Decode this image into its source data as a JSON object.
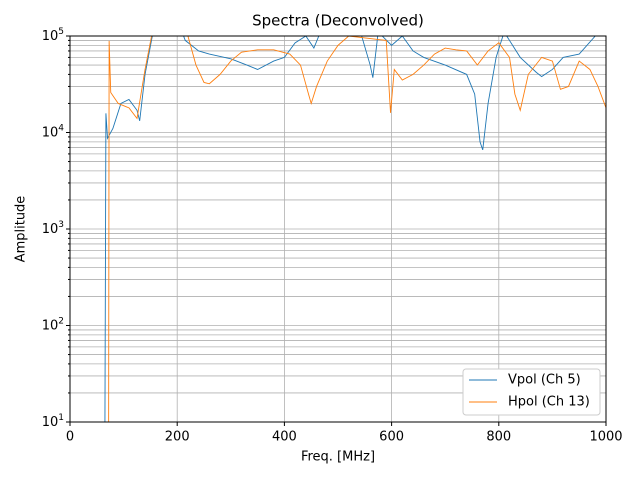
{
  "chart_data": {
    "type": "line",
    "title": "Spectra (Deconvolved)",
    "xlabel": "Freq. [MHz]",
    "ylabel": "Amplitude",
    "yscale": "log",
    "grid": true,
    "minor_grid": true,
    "legend": "lower right",
    "xlim": [
      0,
      1000
    ],
    "xticks": [
      0,
      200,
      400,
      600,
      800,
      1000
    ],
    "ylim": [
      10,
      100000
    ],
    "yticks": [
      {
        "value": 10,
        "label": "10^1"
      },
      {
        "value": 100,
        "label": "10^2"
      },
      {
        "value": 1000,
        "label": "10^3"
      },
      {
        "value": 10000,
        "label": "10^4"
      },
      {
        "value": 100000,
        "label": "10^5"
      }
    ],
    "series": [
      {
        "name": "Vpol (Ch 5)",
        "color": "#1f77b4",
        "x": [
          65,
          67,
          70,
          80,
          95,
          110,
          125,
          130,
          140,
          155,
          200,
          215,
          240,
          260,
          300,
          330,
          350,
          380,
          400,
          420,
          440,
          455,
          470,
          540,
          560,
          565,
          575,
          600,
          620,
          640,
          660,
          700,
          740,
          755,
          765,
          770,
          780,
          795,
          810,
          840,
          870,
          880,
          900,
          920,
          950,
          980,
          1000
        ],
        "values": [
          5,
          15800,
          8700,
          11000,
          20000,
          22000,
          17000,
          13200,
          40000,
          110000,
          150000,
          90000,
          70000,
          65000,
          58000,
          50000,
          45000,
          55000,
          60000,
          85000,
          100000,
          75000,
          120000,
          120000,
          50000,
          37000,
          110000,
          80000,
          100000,
          70000,
          60000,
          50000,
          40000,
          25000,
          8000,
          6600,
          20000,
          60000,
          110000,
          60000,
          42000,
          38000,
          45000,
          60000,
          65000,
          100000,
          130000
        ]
      },
      {
        "name": "Hpol (Ch 13)",
        "color": "#ff7f0e",
        "x": [
          72,
          73,
          76,
          90,
          110,
          125,
          140,
          155,
          220,
          235,
          250,
          260,
          280,
          300,
          320,
          350,
          380,
          410,
          430,
          445,
          450,
          460,
          480,
          500,
          520,
          590,
          598,
          605,
          620,
          640,
          660,
          680,
          700,
          720,
          740,
          760,
          780,
          800,
          820,
          830,
          840,
          855,
          880,
          900,
          915,
          930,
          950,
          970,
          985,
          1000
        ],
        "values": [
          5,
          89000,
          26000,
          20000,
          18000,
          14000,
          45000,
          120000,
          100000,
          50000,
          33000,
          32000,
          40000,
          55000,
          68000,
          72000,
          72000,
          65000,
          50000,
          25000,
          20000,
          30000,
          55000,
          80000,
          100000,
          90000,
          16000,
          45000,
          35000,
          40000,
          50000,
          65000,
          75000,
          72000,
          70000,
          50000,
          70000,
          85000,
          60000,
          25000,
          17000,
          40000,
          60000,
          55000,
          28000,
          30000,
          55000,
          45000,
          30000,
          18000
        ]
      }
    ]
  }
}
